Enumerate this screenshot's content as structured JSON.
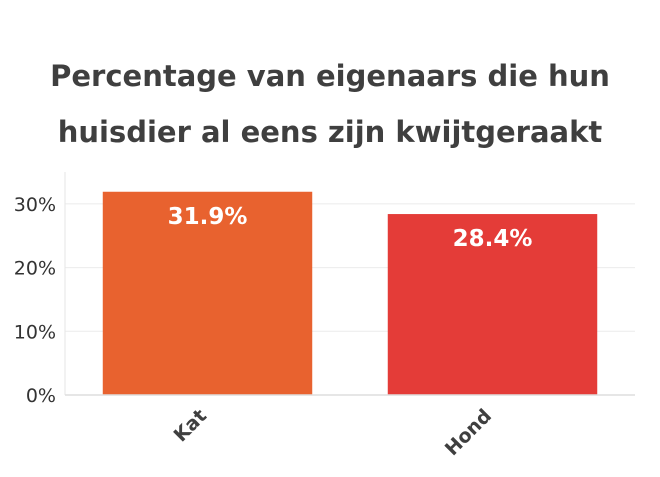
{
  "chart_data": {
    "type": "bar",
    "title": "Percentage van eigenaars die hun huisdier al eens zijn kwijtgeraakt",
    "categories": [
      "Kat",
      "Hond"
    ],
    "values": [
      31.9,
      28.4
    ],
    "data_labels": [
      "31.9%",
      "28.4%"
    ],
    "bar_colors": [
      "#e8622f",
      "#e43c38"
    ],
    "xlabel": "",
    "ylabel": "",
    "ylim": [
      0,
      35
    ],
    "yticks": [
      0,
      10,
      20,
      30
    ],
    "ytick_labels": [
      "0%",
      "10%",
      "20%",
      "30%"
    ],
    "grid": true,
    "legend": "none"
  }
}
